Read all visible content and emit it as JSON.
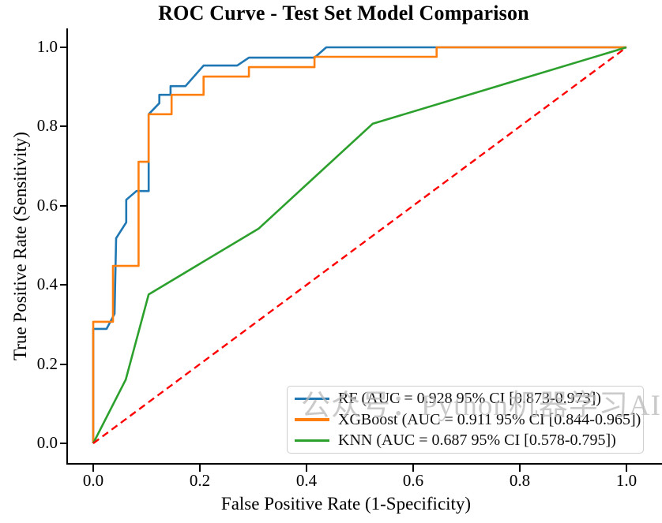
{
  "title": "ROC Curve - Test Set Model Comparison",
  "axes": {
    "x_label": "False Positive Rate (1-Specificity)",
    "y_label": "True Positive Rate (Sensitivity)",
    "x_ticks": [
      "0.0",
      "0.2",
      "0.4",
      "0.6",
      "0.8",
      "1.0"
    ],
    "y_ticks": [
      "0.0",
      "0.2",
      "0.4",
      "0.6",
      "0.8",
      "1.0"
    ]
  },
  "watermark": "公众号：Python机器学习AI",
  "legend": {
    "entries": [
      {
        "label": "RF (AUC = 0.928 95% CI [0.873-0.973])",
        "color": "#1f77b4"
      },
      {
        "label": "XGBoost (AUC = 0.911 95% CI [0.844-0.965])",
        "color": "#ff7f0e"
      },
      {
        "label": "KNN (AUC = 0.687 95% CI [0.578-0.795])",
        "color": "#2ca02c"
      }
    ]
  },
  "chart_data": {
    "type": "line",
    "title": "ROC Curve - Test Set Model Comparison",
    "xlabel": "False Positive Rate (1-Specificity)",
    "ylabel": "True Positive Rate (Sensitivity)",
    "xlim": [
      -0.05,
      1.05
    ],
    "ylim": [
      -0.05,
      1.05
    ],
    "x_tick_values": [
      0.0,
      0.2,
      0.4,
      0.6,
      0.8,
      1.0
    ],
    "y_tick_values": [
      0.0,
      0.2,
      0.4,
      0.6,
      0.8,
      1.0
    ],
    "grid": false,
    "legend_position": "lower right",
    "series": [
      {
        "name": "RF",
        "label": "RF (AUC = 0.928 95% CI [0.873-0.973])",
        "auc": 0.928,
        "ci_low": 0.873,
        "ci_high": 0.973,
        "color": "#1f77b4",
        "style": "solid",
        "points": [
          [
            0,
            0
          ],
          [
            0,
            0.289
          ],
          [
            0.025,
            0.289
          ],
          [
            0.04,
            0.327
          ],
          [
            0.043,
            0.518
          ],
          [
            0.062,
            0.558
          ],
          [
            0.062,
            0.615
          ],
          [
            0.081,
            0.637
          ],
          [
            0.104,
            0.637
          ],
          [
            0.104,
            0.831
          ],
          [
            0.124,
            0.859
          ],
          [
            0.124,
            0.88
          ],
          [
            0.145,
            0.88
          ],
          [
            0.145,
            0.902
          ],
          [
            0.173,
            0.902
          ],
          [
            0.207,
            0.954
          ],
          [
            0.27,
            0.954
          ],
          [
            0.292,
            0.974
          ],
          [
            0.415,
            0.974
          ],
          [
            0.437,
            1.0
          ],
          [
            1.0,
            1.0
          ]
        ]
      },
      {
        "name": "XGBoost",
        "label": "XGBoost (AUC = 0.911 95% CI [0.844-0.965])",
        "auc": 0.911,
        "ci_low": 0.844,
        "ci_high": 0.965,
        "color": "#ff7f0e",
        "style": "solid",
        "points": [
          [
            0,
            0
          ],
          [
            0,
            0.307
          ],
          [
            0.037,
            0.307
          ],
          [
            0.037,
            0.448
          ],
          [
            0.085,
            0.448
          ],
          [
            0.085,
            0.711
          ],
          [
            0.104,
            0.711
          ],
          [
            0.104,
            0.831
          ],
          [
            0.147,
            0.831
          ],
          [
            0.147,
            0.88
          ],
          [
            0.207,
            0.88
          ],
          [
            0.207,
            0.926
          ],
          [
            0.292,
            0.926
          ],
          [
            0.292,
            0.95
          ],
          [
            0.415,
            0.95
          ],
          [
            0.415,
            0.976
          ],
          [
            0.644,
            0.976
          ],
          [
            0.644,
            1.0
          ],
          [
            1.0,
            1.0
          ]
        ]
      },
      {
        "name": "KNN",
        "label": "KNN (AUC = 0.687 95% CI [0.578-0.795])",
        "auc": 0.687,
        "ci_low": 0.578,
        "ci_high": 0.795,
        "color": "#2ca02c",
        "style": "solid",
        "points": [
          [
            0,
            0
          ],
          [
            0.061,
            0.161
          ],
          [
            0.104,
            0.376
          ],
          [
            0.31,
            0.542
          ],
          [
            0.524,
            0.807
          ],
          [
            1.0,
            1.0
          ]
        ]
      }
    ],
    "reference_line": {
      "name": "chance-diagonal",
      "color": "#ff0000",
      "style": "dashed",
      "points": [
        [
          0,
          0
        ],
        [
          1,
          1
        ]
      ]
    }
  }
}
